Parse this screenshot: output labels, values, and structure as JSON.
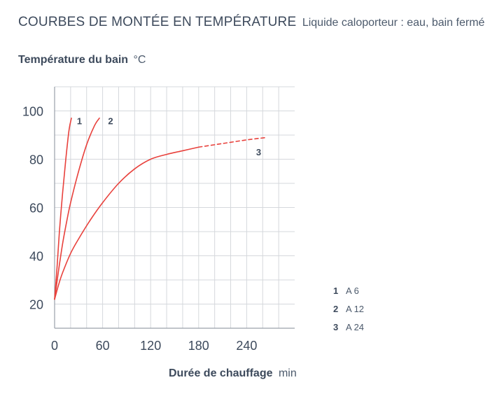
{
  "header": {
    "title": "COURBES DE MONTÉE EN TEMPÉRATURE",
    "subtitle": "Liquide caloporteur : eau, bain fermé"
  },
  "axes": {
    "y_title": "Température du bain",
    "y_unit": "°C",
    "x_title": "Durée de chauffage",
    "x_unit": "min"
  },
  "chart_data": {
    "type": "line",
    "title": "COURBES DE MONTÉE EN TEMPÉRATURE",
    "subtitle": "Liquide caloporteur : eau, bain fermé",
    "xlabel": "Durée de chauffage min",
    "ylabel": "Température du bain °C",
    "xlim": [
      0,
      300
    ],
    "ylim": [
      10,
      110
    ],
    "xticks": [
      0,
      60,
      120,
      180,
      240
    ],
    "yticks": [
      20,
      40,
      60,
      80,
      100
    ],
    "grid": true,
    "line_color": "#e8413c",
    "series": [
      {
        "name": "A 6",
        "label": "1",
        "x": [
          0,
          3,
          6,
          10,
          14,
          18,
          21
        ],
        "y": [
          22,
          35,
          50,
          66,
          80,
          92,
          97
        ]
      },
      {
        "name": "A 12",
        "label": "2",
        "x": [
          0,
          5,
          10,
          15,
          20,
          30,
          40,
          50,
          56
        ],
        "y": [
          22,
          34,
          45,
          54,
          62,
          75,
          86,
          94,
          97
        ]
      },
      {
        "name": "A 24",
        "label": "3",
        "x": [
          0,
          5,
          10,
          20,
          30,
          45,
          60,
          80,
          100,
          120,
          140,
          160,
          180
        ],
        "y": [
          22,
          28,
          33,
          41,
          47,
          55,
          62,
          70,
          76,
          80,
          82,
          83.5,
          85
        ]
      },
      {
        "name": "A 24",
        "label": "",
        "dashed": true,
        "x": [
          180,
          210,
          240,
          265
        ],
        "y": [
          85,
          86.5,
          88,
          89
        ]
      }
    ],
    "annotations": [
      {
        "text": "1",
        "x": 31,
        "y": 96
      },
      {
        "text": "2",
        "x": 70,
        "y": 96
      },
      {
        "text": "3",
        "x": 255,
        "y": 83
      }
    ]
  },
  "legend": [
    {
      "num": "1",
      "label": "A 6"
    },
    {
      "num": "2",
      "label": "A 12"
    },
    {
      "num": "3",
      "label": "A 24"
    }
  ]
}
